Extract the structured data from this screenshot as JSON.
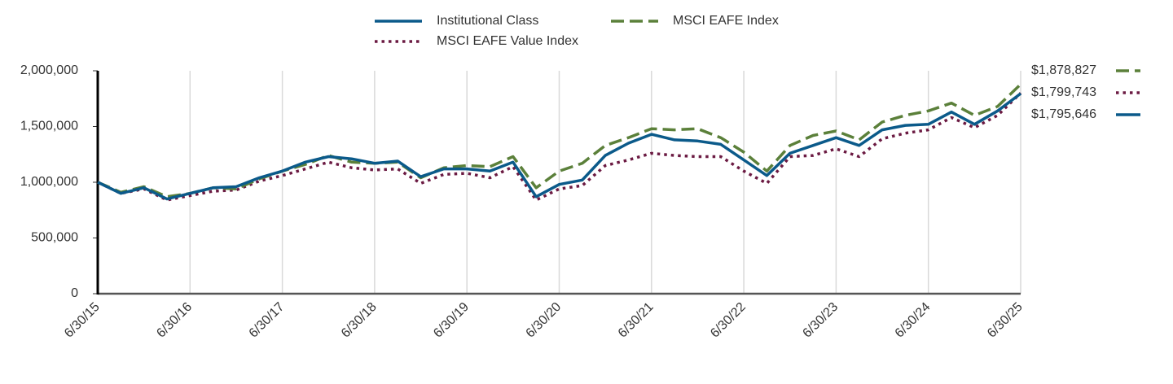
{
  "chart_data": {
    "type": "line",
    "categories": [
      "6/30/15",
      null,
      null,
      null,
      "6/30/16",
      null,
      null,
      null,
      "6/30/17",
      null,
      null,
      null,
      "6/30/18",
      null,
      null,
      null,
      "6/30/19",
      null,
      null,
      null,
      "6/30/20",
      null,
      null,
      null,
      "6/30/21",
      null,
      null,
      null,
      "6/30/22",
      null,
      null,
      null,
      "6/30/23",
      null,
      null,
      null,
      "6/30/24",
      null,
      null,
      null,
      "6/30/25"
    ],
    "ylim": [
      0,
      2000000
    ],
    "yticks": [
      0,
      {
        "value": 500000,
        "label": "500,000"
      },
      {
        "value": 1000000,
        "label": "1,000,000"
      },
      {
        "value": 1500000,
        "label": "1,500,000"
      },
      {
        "value": 2000000,
        "label": "2,000,000"
      }
    ],
    "grid": true,
    "legend": "top",
    "series": [
      {
        "name": "Institutional Class",
        "color": "#0b5a8a",
        "style": "solid",
        "values": [
          1000000,
          900000,
          950000,
          850000,
          900000,
          950000,
          960000,
          1040000,
          1100000,
          1180000,
          1230000,
          1210000,
          1170000,
          1190000,
          1050000,
          1120000,
          1120000,
          1100000,
          1180000,
          870000,
          980000,
          1020000,
          1240000,
          1350000,
          1430000,
          1380000,
          1370000,
          1340000,
          1200000,
          1060000,
          1260000,
          1330000,
          1400000,
          1330000,
          1470000,
          1510000,
          1520000,
          1630000,
          1520000,
          1640000,
          1795646
        ],
        "value_labels": [
          null,
          null,
          null,
          null,
          null,
          null,
          null,
          null,
          null,
          null,
          null,
          null,
          null,
          null,
          null,
          null,
          null,
          null,
          null,
          null,
          null,
          null,
          null,
          null,
          null,
          null,
          null,
          null,
          null,
          null,
          null,
          null,
          null,
          null,
          null,
          null,
          null,
          null,
          null,
          null,
          "$1,795,646"
        ]
      },
      {
        "name": "MSCI EAFE Index",
        "color": "#5b803a",
        "style": "dashed",
        "values": [
          1000000,
          910000,
          960000,
          870000,
          900000,
          950000,
          940000,
          1030000,
          1100000,
          1160000,
          1240000,
          1180000,
          1170000,
          1180000,
          1040000,
          1130000,
          1150000,
          1140000,
          1230000,
          950000,
          1100000,
          1170000,
          1330000,
          1400000,
          1480000,
          1470000,
          1480000,
          1400000,
          1270000,
          1100000,
          1330000,
          1420000,
          1460000,
          1380000,
          1540000,
          1600000,
          1640000,
          1710000,
          1600000,
          1680000,
          1878827
        ],
        "value_labels": [
          null,
          null,
          null,
          null,
          null,
          null,
          null,
          null,
          null,
          null,
          null,
          null,
          null,
          null,
          null,
          null,
          null,
          null,
          null,
          null,
          null,
          null,
          null,
          null,
          null,
          null,
          null,
          null,
          null,
          null,
          null,
          null,
          null,
          null,
          null,
          null,
          null,
          null,
          null,
          null,
          "$1,878,827"
        ]
      },
      {
        "name": "MSCI EAFE Value Index",
        "color": "#6b1a42",
        "style": "dotted",
        "values": [
          1000000,
          900000,
          940000,
          840000,
          880000,
          920000,
          930000,
          1010000,
          1060000,
          1120000,
          1180000,
          1130000,
          1110000,
          1120000,
          990000,
          1070000,
          1080000,
          1040000,
          1140000,
          840000,
          940000,
          970000,
          1150000,
          1200000,
          1260000,
          1240000,
          1230000,
          1230000,
          1100000,
          990000,
          1230000,
          1240000,
          1300000,
          1230000,
          1390000,
          1440000,
          1470000,
          1580000,
          1490000,
          1600000,
          1799743
        ],
        "value_labels": [
          null,
          null,
          null,
          null,
          null,
          null,
          null,
          null,
          null,
          null,
          null,
          null,
          null,
          null,
          null,
          null,
          null,
          null,
          null,
          null,
          null,
          null,
          null,
          null,
          null,
          null,
          null,
          null,
          null,
          null,
          null,
          null,
          null,
          null,
          null,
          null,
          null,
          null,
          null,
          null,
          "$1,799,743"
        ]
      }
    ]
  }
}
